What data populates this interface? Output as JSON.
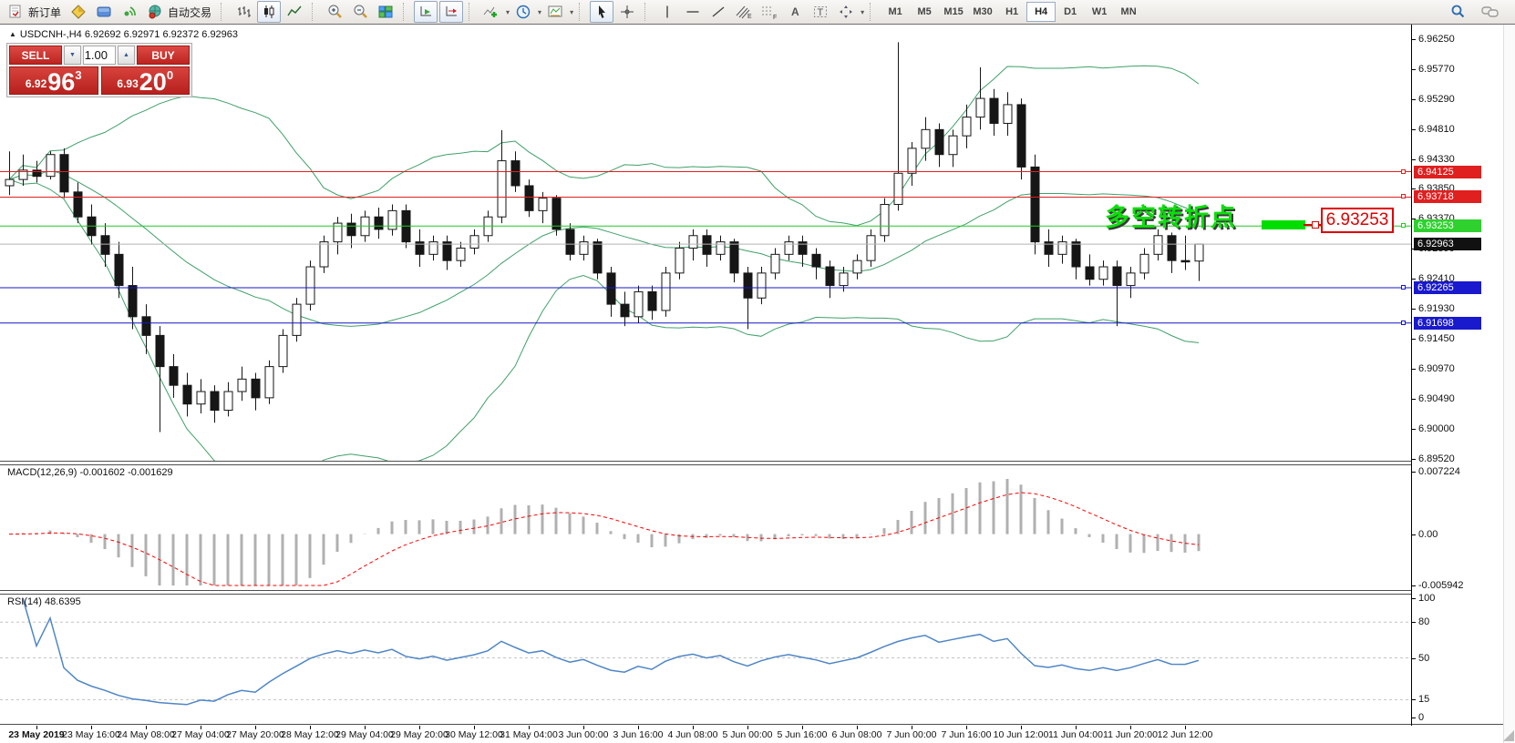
{
  "toolbar": {
    "new_order_label": "新订单",
    "auto_trading_label": "自动交易",
    "timeframes": [
      "M1",
      "M5",
      "M15",
      "M30",
      "H1",
      "H4",
      "D1",
      "W1",
      "MN"
    ],
    "active_timeframe": "H4",
    "icons": [
      "new-order",
      "profiles",
      "community",
      "signals",
      "market",
      "auto-trading",
      "bar-chart",
      "candlestick-chart",
      "line-chart",
      "zoom-in",
      "zoom-out",
      "tile-windows",
      "auto-scroll",
      "chart-shift",
      "indicators",
      "periods",
      "templates",
      "cursor",
      "crosshair",
      "vertical-line",
      "horizontal-line",
      "trendline",
      "equidistant-channel",
      "fibonacci",
      "text",
      "text-label",
      "arrows",
      "search",
      "chat"
    ]
  },
  "symbol": {
    "line": "USDCNH-,H4  6.92692 6.92971 6.92372 6.92963",
    "name": "USDCNH-",
    "timeframe": "H4",
    "open": "6.92692",
    "high": "6.92971",
    "low": "6.92372",
    "close": "6.92963"
  },
  "trade_panel": {
    "sell_label": "SELL",
    "buy_label": "BUY",
    "volume": "1.00",
    "sell_small": "6.92",
    "sell_big": "96",
    "sell_sup": "3",
    "buy_small": "6.93",
    "buy_big": "20",
    "buy_sup": "0"
  },
  "annotation": {
    "text": "多空转折点",
    "box_label": "6.93253"
  },
  "colors": {
    "bollinger": "#3fa06a",
    "candle": "#161616",
    "red_line": "#e02020",
    "blue_line": "#1717c9",
    "green_line": "#22cc22",
    "bid_line": "#b4b4b4",
    "macd_bar": "#b0b0b0",
    "macd_signal": "#ff0000",
    "rsi_line": "#4f86c6",
    "flag_red": "#e01f1f",
    "flag_green": "#2fd12f",
    "flag_blue": "#1919cd",
    "flag_black": "#111111"
  },
  "chart_data": [
    {
      "type": "candlestick",
      "title": "USDCNH-,H4",
      "ylim": [
        6.8952,
        6.9625
      ],
      "y_ticks": [
        "6.96250",
        "6.95770",
        "6.95290",
        "6.94810",
        "6.94330",
        "6.93850",
        "6.93370",
        "6.92890",
        "6.92410",
        "6.91930",
        "6.91450",
        "6.90970",
        "6.90490",
        "6.90000",
        "6.89520"
      ],
      "x_labels": [
        "23 May 2019",
        "23 May 16:00",
        "24 May 08:00",
        "27 May 04:00",
        "27 May 20:00",
        "28 May 12:00",
        "29 May 04:00",
        "29 May 20:00",
        "30 May 12:00",
        "31 May 04:00",
        "3 Jun 00:00",
        "3 Jun 16:00",
        "4 Jun 08:00",
        "5 Jun 00:00",
        "5 Jun 16:00",
        "6 Jun 08:00",
        "7 Jun 00:00",
        "7 Jun 16:00",
        "10 Jun 12:00",
        "11 Jun 04:00",
        "11 Jun 20:00",
        "12 Jun 12:00"
      ],
      "x_label_every_n_candles": 4,
      "first_label_candle_index": 2,
      "candles": [
        [
          6.939,
          6.9445,
          6.9375,
          6.94
        ],
        [
          6.94,
          6.944,
          6.939,
          6.9415
        ],
        [
          6.9415,
          6.943,
          6.9395,
          6.9405
        ],
        [
          6.9405,
          6.9445,
          6.94,
          6.944
        ],
        [
          6.944,
          6.945,
          6.937,
          6.938
        ],
        [
          6.938,
          6.9395,
          6.933,
          6.934
        ],
        [
          6.934,
          6.936,
          6.9295,
          6.931
        ],
        [
          6.931,
          6.933,
          6.926,
          6.928
        ],
        [
          6.928,
          6.93,
          6.921,
          6.923
        ],
        [
          6.923,
          6.926,
          6.916,
          6.918
        ],
        [
          6.918,
          6.92,
          6.912,
          6.915
        ],
        [
          6.915,
          6.9165,
          6.8995,
          6.91
        ],
        [
          6.91,
          6.912,
          6.905,
          6.907
        ],
        [
          6.907,
          6.909,
          6.902,
          6.904
        ],
        [
          6.904,
          6.908,
          6.9025,
          6.906
        ],
        [
          6.906,
          6.907,
          6.901,
          6.903
        ],
        [
          6.903,
          6.9075,
          6.902,
          6.906
        ],
        [
          6.906,
          6.91,
          6.9045,
          6.908
        ],
        [
          6.908,
          6.909,
          6.903,
          6.905
        ],
        [
          6.905,
          6.911,
          6.904,
          6.91
        ],
        [
          6.91,
          6.916,
          6.909,
          6.915
        ],
        [
          6.915,
          6.921,
          6.914,
          6.92
        ],
        [
          6.92,
          6.927,
          6.919,
          6.926
        ],
        [
          6.926,
          6.931,
          6.925,
          6.93
        ],
        [
          6.93,
          6.934,
          6.928,
          6.933
        ],
        [
          6.933,
          6.9345,
          6.929,
          6.931
        ],
        [
          6.931,
          6.935,
          6.93,
          6.934
        ],
        [
          6.934,
          6.9355,
          6.9305,
          6.932
        ],
        [
          6.932,
          6.936,
          6.931,
          6.935
        ],
        [
          6.935,
          6.936,
          6.929,
          6.93
        ],
        [
          6.93,
          6.932,
          6.926,
          6.928
        ],
        [
          6.928,
          6.931,
          6.927,
          6.93
        ],
        [
          6.93,
          6.931,
          6.9255,
          6.927
        ],
        [
          6.927,
          6.93,
          6.926,
          6.929
        ],
        [
          6.929,
          6.932,
          6.928,
          6.931
        ],
        [
          6.931,
          6.935,
          6.93,
          6.934
        ],
        [
          6.934,
          6.9479,
          6.933,
          6.943
        ],
        [
          6.943,
          6.9445,
          6.938,
          6.939
        ],
        [
          6.939,
          6.94,
          6.934,
          6.935
        ],
        [
          6.935,
          6.938,
          6.933,
          6.937
        ],
        [
          6.937,
          6.9375,
          6.931,
          6.932
        ],
        [
          6.932,
          6.933,
          6.927,
          6.928
        ],
        [
          6.928,
          6.931,
          6.927,
          6.93
        ],
        [
          6.93,
          6.9305,
          6.924,
          6.925
        ],
        [
          6.925,
          6.926,
          6.918,
          6.92
        ],
        [
          6.92,
          6.922,
          6.9165,
          6.918
        ],
        [
          6.918,
          6.923,
          6.917,
          6.922
        ],
        [
          6.922,
          6.923,
          6.9175,
          6.919
        ],
        [
          6.919,
          6.926,
          6.918,
          6.925
        ],
        [
          6.925,
          6.93,
          6.924,
          6.929
        ],
        [
          6.929,
          6.932,
          6.927,
          6.931
        ],
        [
          6.931,
          6.932,
          6.926,
          6.928
        ],
        [
          6.928,
          6.931,
          6.927,
          6.93
        ],
        [
          6.93,
          6.9305,
          6.9235,
          6.925
        ],
        [
          6.925,
          6.926,
          6.916,
          6.921
        ],
        [
          6.921,
          6.926,
          6.92,
          6.925
        ],
        [
          6.925,
          6.929,
          6.924,
          6.928
        ],
        [
          6.928,
          6.931,
          6.927,
          6.93
        ],
        [
          6.93,
          6.931,
          6.926,
          6.928
        ],
        [
          6.928,
          6.929,
          6.924,
          6.926
        ],
        [
          6.926,
          6.927,
          6.921,
          6.923
        ],
        [
          6.923,
          6.926,
          6.922,
          6.925
        ],
        [
          6.925,
          6.928,
          6.924,
          6.927
        ],
        [
          6.927,
          6.932,
          6.926,
          6.931
        ],
        [
          6.931,
          6.937,
          6.93,
          6.936
        ],
        [
          6.936,
          6.962,
          6.935,
          6.941
        ],
        [
          6.941,
          6.946,
          6.939,
          6.945
        ],
        [
          6.945,
          6.95,
          6.943,
          6.948
        ],
        [
          6.948,
          6.949,
          6.942,
          6.944
        ],
        [
          6.944,
          6.948,
          6.942,
          6.947
        ],
        [
          6.947,
          6.952,
          6.945,
          6.95
        ],
        [
          6.95,
          6.958,
          6.948,
          6.953
        ],
        [
          6.953,
          6.9545,
          6.947,
          6.949
        ],
        [
          6.949,
          6.954,
          6.947,
          6.952
        ],
        [
          6.952,
          6.953,
          6.94,
          6.942
        ],
        [
          6.942,
          6.944,
          6.928,
          6.93
        ],
        [
          6.93,
          6.932,
          6.926,
          6.928
        ],
        [
          6.928,
          6.931,
          6.9265,
          6.93
        ],
        [
          6.93,
          6.9305,
          6.924,
          6.926
        ],
        [
          6.926,
          6.928,
          6.923,
          6.924
        ],
        [
          6.924,
          6.927,
          6.923,
          6.926
        ],
        [
          6.926,
          6.927,
          6.9165,
          6.923
        ],
        [
          6.923,
          6.926,
          6.921,
          6.925
        ],
        [
          6.925,
          6.929,
          6.924,
          6.928
        ],
        [
          6.928,
          6.932,
          6.927,
          6.931
        ],
        [
          6.931,
          6.9315,
          6.925,
          6.927
        ],
        [
          6.927,
          6.931,
          6.9255,
          6.9269
        ],
        [
          6.92692,
          6.92971,
          6.92372,
          6.92963
        ]
      ],
      "overlays": {
        "bollinger": {
          "period": 20,
          "deviation": 2
        },
        "hlines": [
          {
            "price": 6.94125,
            "label": "6.94125",
            "color": "red"
          },
          {
            "price": 6.93718,
            "label": "6.93718",
            "color": "red"
          },
          {
            "price": 6.93253,
            "label": "6.93253",
            "color": "green"
          },
          {
            "price": 6.92265,
            "label": "6.92265",
            "color": "blue"
          },
          {
            "price": 6.91698,
            "label": "6.91698",
            "color": "blue"
          }
        ],
        "bid": {
          "price": 6.92963,
          "label": "6.92963"
        }
      }
    },
    {
      "type": "macd",
      "label": "MACD(12,26,9) -0.001602 -0.001629",
      "params": [
        12,
        26,
        9
      ],
      "last_macd": -0.001602,
      "last_signal": -0.001629,
      "ylim": [
        -0.005942,
        0.007224
      ],
      "y_ticks": [
        "0.007224",
        "0.00",
        "-0.005942"
      ],
      "source": "histogram=EMA12-EMA26, signal=EMA9, derived from candles"
    },
    {
      "type": "rsi",
      "label": "RSI(14) 48.6395",
      "period": 14,
      "last_value": 48.6395,
      "ylim": [
        0,
        100
      ],
      "y_ticks": [
        "100",
        "80",
        "50",
        "15",
        "0"
      ],
      "levels": [
        80,
        50,
        15
      ],
      "source": "derived from candle closes"
    }
  ]
}
